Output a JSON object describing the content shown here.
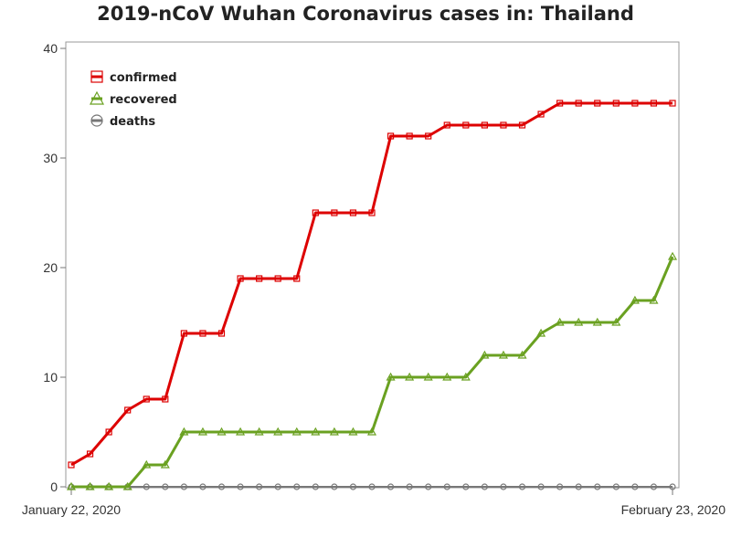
{
  "chart_data": {
    "type": "line",
    "title": "2019-nCoV Wuhan Coronavirus cases in: Thailand",
    "xlabel": "",
    "ylabel": "",
    "x_tick_labels": [
      "January 22, 2020",
      "February 23, 2020"
    ],
    "y_ticks": [
      0,
      10,
      20,
      30,
      40
    ],
    "ylim": [
      0,
      40
    ],
    "grid": false,
    "legend_position": "top-left",
    "series": [
      {
        "name": "confirmed",
        "color": "#dd0000",
        "marker": "square",
        "values": [
          2,
          3,
          5,
          7,
          8,
          8,
          14,
          14,
          14,
          19,
          19,
          19,
          19,
          25,
          25,
          25,
          25,
          32,
          32,
          32,
          33,
          33,
          33,
          33,
          33,
          34,
          35,
          35,
          35,
          35,
          35,
          35,
          35
        ]
      },
      {
        "name": "recovered",
        "color": "#6aa121",
        "marker": "triangle",
        "values": [
          0,
          0,
          0,
          0,
          2,
          2,
          5,
          5,
          5,
          5,
          5,
          5,
          5,
          5,
          5,
          5,
          5,
          10,
          10,
          10,
          10,
          10,
          12,
          12,
          12,
          14,
          15,
          15,
          15,
          15,
          17,
          17,
          21
        ]
      },
      {
        "name": "deaths",
        "color": "#777777",
        "marker": "circle",
        "values": [
          0,
          0,
          0,
          0,
          0,
          0,
          0,
          0,
          0,
          0,
          0,
          0,
          0,
          0,
          0,
          0,
          0,
          0,
          0,
          0,
          0,
          0,
          0,
          0,
          0,
          0,
          0,
          0,
          0,
          0,
          0,
          0,
          0
        ]
      }
    ]
  }
}
